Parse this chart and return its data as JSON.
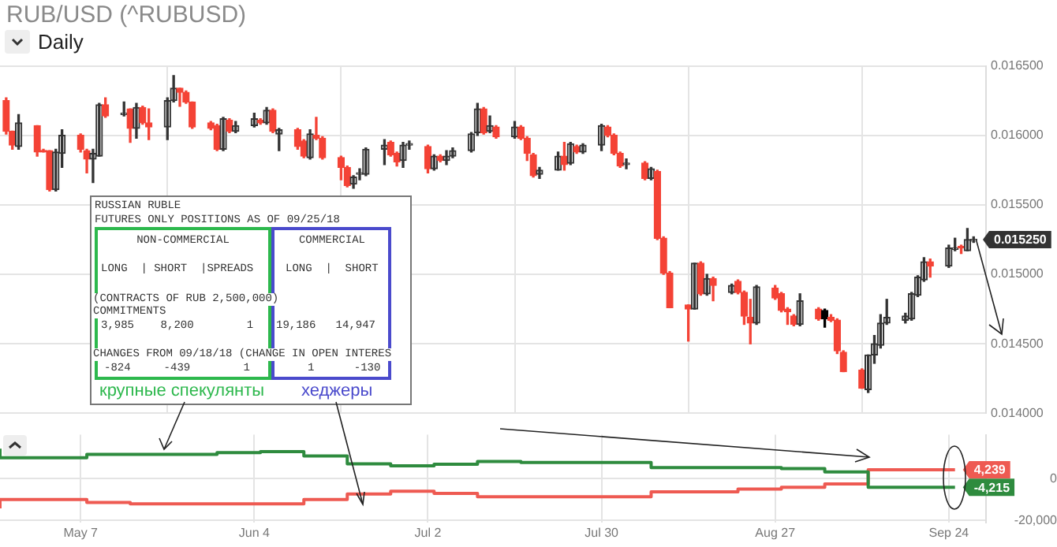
{
  "chart_data": [
    {
      "type": "candlestick",
      "title": "RUB/USD (^RUBUSD)",
      "subtitle": "Daily",
      "x": [
        "--04-25",
        "--04-26",
        "--04-27",
        "--04-30",
        "--05-01",
        "--05-02",
        "--05-03",
        "--05-04",
        "--05-07",
        "--05-08",
        "--05-09",
        "--05-10",
        "--05-11",
        "--05-14",
        "--05-15",
        "--05-16",
        "--05-17",
        "--05-18",
        "--05-21",
        "--05-22",
        "--05-23",
        "--05-24",
        "--05-25",
        "--05-28",
        "--05-29",
        "--05-30",
        "--05-31",
        "--06-01",
        "--06-04",
        "--06-05",
        "--06-06",
        "--06-07",
        "--06-08",
        "--06-11",
        "--06-12",
        "--06-13",
        "--06-14",
        "--06-15",
        "--06-18",
        "--06-19",
        "--06-20",
        "--06-21",
        "--06-22",
        "--06-25",
        "--06-26",
        "--06-27",
        "--06-28",
        "--06-29",
        "--07-02",
        "--07-03",
        "--07-04",
        "--07-05",
        "--07-06",
        "--07-09",
        "--07-10",
        "--07-11",
        "--07-12",
        "--07-13",
        "--07-16",
        "--07-17",
        "--07-18",
        "--07-19",
        "--07-20",
        "--07-23",
        "--07-24",
        "--07-25",
        "--07-26",
        "--07-27",
        "--07-30",
        "--07-31",
        "--08-01",
        "--08-02",
        "--08-03",
        "--08-06",
        "--08-07",
        "--08-08",
        "--08-09",
        "--08-10",
        "--08-13",
        "--08-14",
        "--08-15",
        "--08-16",
        "--08-17",
        "--08-20",
        "--08-21",
        "--08-22",
        "--08-23",
        "--08-24",
        "--08-27",
        "--08-28",
        "--08-29",
        "--08-30",
        "--08-31",
        "--09-03",
        "--09-04",
        "--09-05",
        "--09-06",
        "--09-07",
        "--09-10",
        "--09-11",
        "--09-12",
        "--09-13",
        "--09-14",
        "--09-17",
        "--09-18",
        "--09-19",
        "--09-20",
        "--09-21",
        "--09-24",
        "--09-25",
        "--09-26",
        "--09-27",
        "--09-28"
      ],
      "ohlc": [
        [
          0.01625,
          0.01627,
          0.01601,
          0.01603
        ],
        [
          0.01603,
          0.01603,
          0.0159,
          0.01593
        ],
        [
          0.01592,
          0.01615,
          0.0159,
          0.01609
        ],
        [
          0.01607,
          0.01607,
          0.01585,
          0.01588
        ],
        [
          0.01589,
          0.0159,
          0.01588,
          0.01588
        ],
        [
          0.01589,
          0.01589,
          0.0156,
          0.01561
        ],
        [
          0.01561,
          0.0159,
          0.0156,
          0.01588
        ],
        [
          0.01587,
          0.01604,
          0.01577,
          0.016
        ],
        [
          0.016,
          0.01601,
          0.01588,
          0.0159
        ],
        [
          0.01589,
          0.0159,
          0.01573,
          0.01583
        ],
        [
          0.01583,
          0.0159,
          0.01566,
          0.01587
        ],
        [
          0.01585,
          0.01623,
          0.01585,
          0.01622
        ],
        [
          0.01622,
          0.01627,
          0.01613,
          0.01614
        ],
        [
          0.01615,
          0.01624,
          0.01614,
          0.01616
        ],
        [
          0.01619,
          0.01619,
          0.01595,
          0.01605
        ],
        [
          0.01605,
          0.01623,
          0.01598,
          0.0162
        ],
        [
          0.0162,
          0.01621,
          0.01608,
          0.01609
        ],
        [
          0.01609,
          0.01619,
          0.01597,
          0.01606
        ],
        [
          0.01606,
          0.01627,
          0.01597,
          0.01625
        ],
        [
          0.01625,
          0.01643,
          0.01624,
          0.01634
        ],
        [
          0.01634,
          0.01634,
          0.01621,
          0.01631
        ],
        [
          0.01631,
          0.01632,
          0.01623,
          0.01624
        ],
        [
          0.01624,
          0.01624,
          0.01605,
          0.01606
        ],
        [
          0.01609,
          0.0161,
          0.01604,
          0.01605
        ],
        [
          0.01607,
          0.01608,
          0.01589,
          0.0159
        ],
        [
          0.0159,
          0.01613,
          0.01589,
          0.01612
        ],
        [
          0.01611,
          0.01612,
          0.01602,
          0.01603
        ],
        [
          0.01603,
          0.0161,
          0.01602,
          0.01607
        ],
        [
          0.01607,
          0.01616,
          0.01606,
          0.01612
        ],
        [
          0.01611,
          0.01612,
          0.01608,
          0.01609
        ],
        [
          0.01609,
          0.0162,
          0.01608,
          0.01618
        ],
        [
          0.01618,
          0.01619,
          0.01602,
          0.01603
        ],
        [
          0.01601,
          0.01605,
          0.01589,
          0.01604
        ],
        [
          0.01604,
          0.01605,
          0.0159,
          0.01592
        ],
        [
          0.01596,
          0.01597,
          0.01584,
          0.01585
        ],
        [
          0.01584,
          0.01604,
          0.01583,
          0.01601
        ],
        [
          0.016,
          0.01613,
          0.01597,
          0.01598
        ],
        [
          0.01598,
          0.01599,
          0.01583,
          0.01584
        ],
        [
          0.01584,
          0.01585,
          0.01568,
          0.01577
        ],
        [
          0.01577,
          0.01578,
          0.01563,
          0.01564
        ],
        [
          0.01565,
          0.01571,
          0.01562,
          0.0157
        ],
        [
          0.01572,
          0.01576,
          0.01568,
          0.01573
        ],
        [
          0.01572,
          0.01591,
          0.01571,
          0.0159
        ],
        [
          0.0159,
          0.01597,
          0.01579,
          0.01593
        ],
        [
          0.01595,
          0.01596,
          0.01585,
          0.01586
        ],
        [
          0.01587,
          0.01588,
          0.01578,
          0.01581
        ],
        [
          0.01582,
          0.01595,
          0.01577,
          0.01593
        ],
        [
          0.01593,
          0.01596,
          0.0159,
          0.01594
        ],
        [
          0.01592,
          0.01593,
          0.01573,
          0.01576
        ],
        [
          0.01576,
          0.01586,
          0.01575,
          0.01585
        ],
        [
          0.01585,
          0.01586,
          0.01581,
          0.01582
        ],
        [
          0.01582,
          0.01589,
          0.01579,
          0.01585
        ],
        [
          0.01585,
          0.01591,
          0.01584,
          0.01589
        ],
        [
          0.01589,
          0.01602,
          0.01588,
          0.01601
        ],
        [
          0.01602,
          0.01623,
          0.016,
          0.01619
        ],
        [
          0.01619,
          0.0162,
          0.01601,
          0.01602
        ],
        [
          0.01603,
          0.01614,
          0.01602,
          0.01607
        ],
        [
          0.01606,
          0.01607,
          0.01598,
          0.01599
        ],
        [
          0.01599,
          0.0161,
          0.01598,
          0.01606
        ],
        [
          0.01606,
          0.01607,
          0.01597,
          0.01598
        ],
        [
          0.01598,
          0.01599,
          0.01582,
          0.01587
        ],
        [
          0.01586,
          0.01587,
          0.0157,
          0.01571
        ],
        [
          0.01572,
          0.01577,
          0.01569,
          0.01575
        ],
        [
          0.01575,
          0.01588,
          0.01575,
          0.01585
        ],
        [
          0.01585,
          0.01595,
          0.01575,
          0.01579
        ],
        [
          0.0158,
          0.01595,
          0.01579,
          0.01594
        ],
        [
          0.01592,
          0.01593,
          0.01587,
          0.01588
        ],
        [
          0.01588,
          0.01594,
          0.01587,
          0.01593
        ],
        [
          0.01593,
          0.01608,
          0.01589,
          0.01607
        ],
        [
          0.01606,
          0.01607,
          0.01599,
          0.016
        ],
        [
          0.016,
          0.01601,
          0.01586,
          0.01587
        ],
        [
          0.01587,
          0.01588,
          0.01577,
          0.01578
        ],
        [
          0.01579,
          0.01583,
          0.01576,
          0.0158
        ],
        [
          0.0158,
          0.01581,
          0.01568,
          0.01569
        ],
        [
          0.01569,
          0.01577,
          0.01568,
          0.01576
        ],
        [
          0.01574,
          0.01575,
          0.01525,
          0.01526
        ],
        [
          0.01526,
          0.01527,
          0.015,
          0.01501
        ],
        [
          0.01501,
          0.01502,
          0.01476,
          0.01476
        ],
        [
          0.01478,
          0.01478,
          0.01452,
          0.01475
        ],
        [
          0.01475,
          0.01508,
          0.01475,
          0.01508
        ],
        [
          0.01508,
          0.01509,
          0.01485,
          0.01486
        ],
        [
          0.01486,
          0.015,
          0.01485,
          0.01497
        ],
        [
          0.01497,
          0.01498,
          0.01481,
          0.01492
        ],
        [
          0.01487,
          0.01493,
          0.01486,
          0.01492
        ],
        [
          0.01495,
          0.01496,
          0.01486,
          0.01487
        ],
        [
          0.01487,
          0.01488,
          0.01464,
          0.0147
        ],
        [
          0.01469,
          0.01482,
          0.0145,
          0.01465
        ],
        [
          0.01465,
          0.01492,
          0.01464,
          0.01491
        ],
        [
          0.0149,
          0.01492,
          0.01482,
          0.01483
        ],
        [
          0.01486,
          0.01487,
          0.01473,
          0.01474
        ],
        [
          0.01475,
          0.01476,
          0.01464,
          0.01473
        ],
        [
          0.0147,
          0.01471,
          0.01463,
          0.01464
        ],
        [
          0.01464,
          0.01486,
          0.01463,
          0.01481
        ],
        [
          0.01475,
          0.01476,
          0.01467,
          0.01468
        ],
        [
          0.01474,
          0.01475,
          0.01462,
          0.01468
        ],
        [
          0.01469,
          0.01471,
          0.01466,
          0.01467
        ],
        [
          0.01467,
          0.01468,
          0.01443,
          0.01445
        ],
        [
          0.01444,
          0.01445,
          0.0143,
          0.0143
        ],
        [
          0.01431,
          0.01432,
          0.01418,
          0.01418
        ],
        [
          0.01417,
          0.01442,
          0.01415,
          0.01442
        ],
        [
          0.01442,
          0.01456,
          0.01436,
          0.0145
        ],
        [
          0.01449,
          0.01471,
          0.01447,
          0.01465
        ],
        [
          0.01465,
          0.01482,
          0.01464,
          0.01469
        ],
        [
          0.01467,
          0.01472,
          0.01465,
          0.0147
        ],
        [
          0.01468,
          0.01487,
          0.01467,
          0.01486
        ],
        [
          0.01485,
          0.01499,
          0.01484,
          0.01498
        ],
        [
          0.01496,
          0.01512,
          0.01495,
          0.01509
        ],
        [
          0.01509,
          0.01511,
          0.01498,
          0.01506
        ],
        [
          0.01506,
          0.01521,
          0.01505,
          0.01519
        ],
        [
          0.01518,
          0.01526,
          0.01517,
          0.01519
        ],
        [
          0.0152,
          0.01521,
          0.01515,
          0.01519
        ],
        [
          0.01517,
          0.01533,
          0.01517,
          0.01525
        ],
        [
          0.01524,
          0.01527,
          0.01523,
          0.01525
        ]
      ],
      "colors": [
        "#f44336",
        "#f44336",
        "#333333",
        "#f44336",
        "#f44336",
        "#f44336",
        "#333333",
        "#333333",
        "#f44336",
        "#f44336",
        "#333333",
        "#333333",
        "#f44336",
        "#333333",
        "#f44336",
        "#333333",
        "#f44336",
        "#f44336",
        "#333333",
        "#333333",
        "#f44336",
        "#f44336",
        "#f44336",
        "#f44336",
        "#f44336",
        "#333333",
        "#f44336",
        "#333333",
        "#333333",
        "#f44336",
        "#333333",
        "#f44336",
        "#333333",
        "#f44336",
        "#f44336",
        "#333333",
        "#f44336",
        "#f44336",
        "#f44336",
        "#f44336",
        "#333333",
        "#333333",
        "#333333",
        "#333333",
        "#f44336",
        "#f44336",
        "#333333",
        "#333333",
        "#f44336",
        "#333333",
        "#f44336",
        "#333333",
        "#333333",
        "#333333",
        "#333333",
        "#f44336",
        "#333333",
        "#f44336",
        "#333333",
        "#f44336",
        "#f44336",
        "#f44336",
        "#333333",
        "#333333",
        "#f44336",
        "#333333",
        "#f44336",
        "#333333",
        "#333333",
        "#f44336",
        "#f44336",
        "#f44336",
        "#333333",
        "#f44336",
        "#333333",
        "#f44336",
        "#f44336",
        "#f44336",
        "#f44336",
        "#333333",
        "#f44336",
        "#333333",
        "#f44336",
        "#333333",
        "#f44336",
        "#f44336",
        "#f44336",
        "#333333",
        "#f44336",
        "#f44336",
        "#f44336",
        "#f44336",
        "#333333",
        "#f44336",
        "#000000",
        "#f44336",
        "#f44336",
        "#f44336",
        "#f44336",
        "#333333",
        "#333333",
        "#333333",
        "#333333",
        "#333333",
        "#333333",
        "#333333",
        "#333333",
        "#f44336",
        "#333333",
        "#333333",
        "#f44336",
        "#333333",
        "#333333"
      ],
      "value_labels": [
        null,
        null,
        null,
        null,
        null,
        null,
        null,
        null,
        null,
        null,
        null,
        null,
        null,
        null,
        null,
        null,
        null,
        null,
        null,
        null,
        null,
        null,
        null,
        null,
        null,
        null,
        null,
        null,
        null,
        null,
        null,
        null,
        null,
        null,
        null,
        null,
        null,
        null,
        null,
        null,
        null,
        null,
        null,
        null,
        null,
        null,
        null,
        null,
        null,
        null,
        null,
        null,
        null,
        null,
        null,
        null,
        null,
        null,
        null,
        null,
        null,
        null,
        null,
        null,
        null,
        null,
        null,
        null,
        null,
        null,
        null,
        null,
        null,
        null,
        null,
        null,
        null,
        null,
        null,
        null,
        null,
        null,
        null,
        null,
        null,
        null,
        null,
        null,
        null,
        null,
        null,
        null,
        null,
        null,
        null,
        null,
        null,
        null,
        null,
        null,
        null,
        null,
        null,
        null,
        null,
        null,
        null,
        null,
        null,
        null,
        null,
        null,
        "0.015250"
      ],
      "xlim": [
        "--04-24",
        "--09-30"
      ],
      "xticks": [
        "--05-07",
        "--06-04",
        "--07-02",
        "--07-30",
        "--08-27",
        "--09-24"
      ],
      "ylim": [
        0.014,
        0.0165
      ],
      "yticks": [
        {
          "value": 0.014,
          "label": "0.014000"
        },
        {
          "value": 0.0145,
          "label": "0.014500"
        },
        {
          "value": 0.015,
          "label": "0.015000"
        },
        {
          "value": 0.0155,
          "label": "0.015500"
        },
        {
          "value": 0.016,
          "label": "0.016000"
        },
        {
          "value": 0.0165,
          "label": "0.016500"
        }
      ],
      "grid": true,
      "tick_labels": "y",
      "annotations": [
        "RUSSIAN RUBLE",
        "FUTURES ONLY POSITIONS AS OF 09/25/18",
        "NON-COMMERCIAL",
        "COMMERCIAL",
        "LONG  | SHORT  |SPREADS",
        "LONG  |  SHORT",
        "(CONTRACTS OF RUB 2,500,000)",
        "COMMITMENTS",
        "3,985    8,200        1",
        "19,186   14,947",
        "CHANGES FROM 09/18/18 (CHANGE IN OPEN INTERES",
        "-824     -439        1",
        "1      -130",
        "крупные спекулянты",
        "хеджеры"
      ]
    },
    {
      "type": "line",
      "x": [
        "--04-24",
        "--05-01",
        "--05-08",
        "--05-15",
        "--05-22",
        "--05-29",
        "--06-05",
        "--06-12",
        "--06-19",
        "--06-26",
        "--07-03",
        "--07-10",
        "--07-17",
        "--07-24",
        "--07-31",
        "--08-07",
        "--08-14",
        "--08-21",
        "--08-28",
        "--09-04",
        "--09-11",
        "--09-18",
        "--09-25"
      ],
      "series": [
        {
          "type": "step",
          "color": "#2e8b3e",
          "values": [
            14300,
            10000,
            10000,
            11600,
            11600,
            11600,
            12400,
            12900,
            10800,
            7100,
            6100,
            6900,
            8200,
            7700,
            7700,
            7700,
            5300,
            5300,
            5300,
            4800,
            3200,
            -4215,
            -4215
          ],
          "value_labels": [
            null,
            null,
            null,
            null,
            null,
            null,
            null,
            null,
            null,
            null,
            null,
            null,
            null,
            null,
            null,
            null,
            null,
            null,
            null,
            null,
            null,
            null,
            "-4,215"
          ]
        },
        {
          "type": "step",
          "color": "#ee5a52",
          "values": [
            -14300,
            -10000,
            -10000,
            -11400,
            -12100,
            -12100,
            -12100,
            -12100,
            -10000,
            -7400,
            -6100,
            -7100,
            -8700,
            -8700,
            -8700,
            -8700,
            -6300,
            -6300,
            -5000,
            -4200,
            -2600,
            4239,
            4239
          ],
          "value_labels": [
            null,
            null,
            null,
            null,
            null,
            null,
            null,
            null,
            null,
            null,
            null,
            null,
            null,
            null,
            null,
            null,
            null,
            null,
            null,
            null,
            null,
            null,
            "4,239"
          ]
        }
      ],
      "xlim": [
        "--04-24",
        "--09-30"
      ],
      "xticks": [
        {
          "value": "--05-07",
          "label": "May 7"
        },
        {
          "value": "--06-04",
          "label": "Jun 4"
        },
        {
          "value": "--07-02",
          "label": "Jul 2"
        },
        {
          "value": "--07-30",
          "label": "Jul 30"
        },
        {
          "value": "--08-27",
          "label": "Aug 27"
        },
        {
          "value": "--09-24",
          "label": "Sep 24"
        }
      ],
      "ylim": [
        -21000,
        21000
      ],
      "yticks": [
        0,
        {
          "value": -20000,
          "label": "-20,000"
        }
      ],
      "grid": true
    }
  ]
}
